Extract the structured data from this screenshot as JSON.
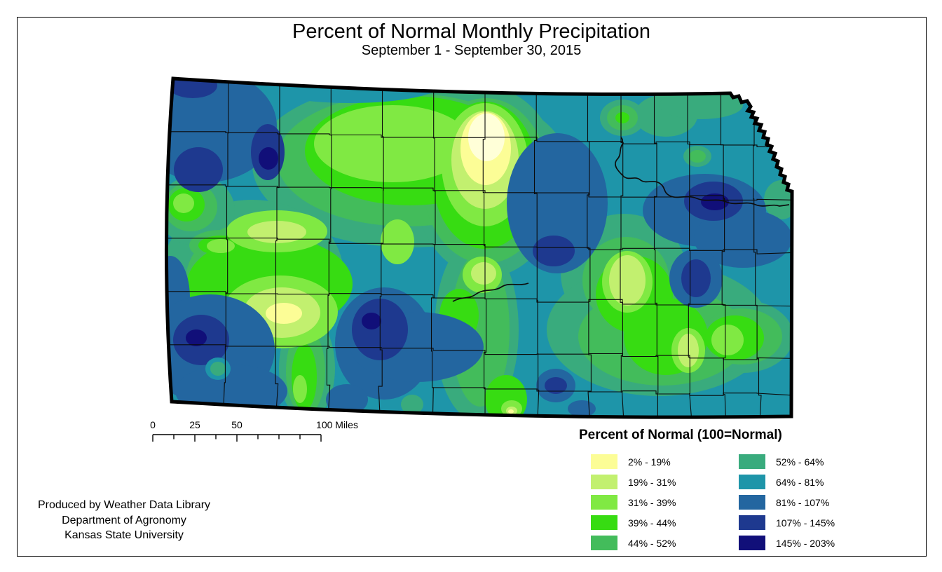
{
  "title": "Percent of Normal Monthly Precipitation",
  "subtitle": "September 1 - September 30, 2015",
  "legend": {
    "title": "Percent of Normal (100=Normal)",
    "items": [
      {
        "label": "2% - 19%",
        "color": "#FCFD96"
      },
      {
        "label": "19% - 31%",
        "color": "#C2F06F"
      },
      {
        "label": "31% - 39%",
        "color": "#80E943"
      },
      {
        "label": "39% - 44%",
        "color": "#37DC12"
      },
      {
        "label": "44% - 52%",
        "color": "#43BC5B"
      },
      {
        "label": "52% - 64%",
        "color": "#39AB7D"
      },
      {
        "label": "64% - 81%",
        "color": "#1E95A9"
      },
      {
        "label": "81% - 107%",
        "color": "#2366A0"
      },
      {
        "label": "107% - 145%",
        "color": "#1E398F"
      },
      {
        "label": "145% - 203%",
        "color": "#110F79"
      }
    ]
  },
  "scale_bar": {
    "labels": [
      "0",
      "25",
      "50",
      "100 Miles"
    ]
  },
  "attribution": {
    "lines": [
      "Produced by Weather Data Library",
      "Department of Agronomy",
      "Kansas State University"
    ]
  }
}
